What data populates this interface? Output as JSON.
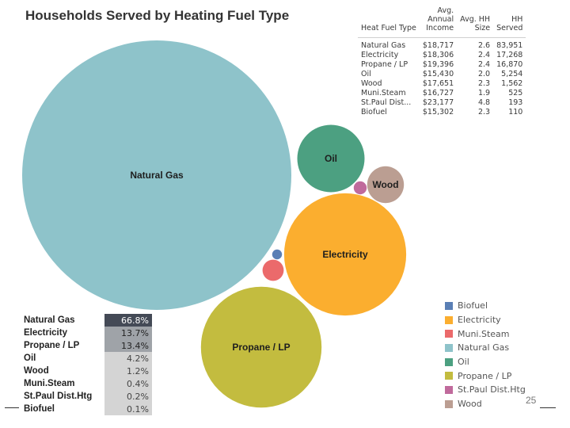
{
  "title": "Households Served by Heating Fuel Type",
  "colors": {
    "biofuel": "#5a7fb5",
    "electricity": "#fbae2f",
    "muni_steam": "#eb6a6b",
    "natural_gas": "#8ec3ca",
    "oil": "#4ca081",
    "propane_lp": "#c3bc3f",
    "st_paul_dist_htg": "#c06a9c",
    "wood": "#bb9e92",
    "share_highlight": "#444a56",
    "share_mid": "#9fa3a8",
    "share_low": "#d4d4d4"
  },
  "chart_data": {
    "type": "bubble",
    "title": "Households Served by Heating Fuel Type",
    "size_measure": "HH Served",
    "series": [
      {
        "name": "Natural Gas",
        "value": 83951,
        "color": "#8ec3ca",
        "label": "Natural Gas"
      },
      {
        "name": "Electricity",
        "value": 17268,
        "color": "#fbae2f",
        "label": "Electricity"
      },
      {
        "name": "Propane / LP",
        "value": 16870,
        "color": "#c3bc3f",
        "label": "Propane / LP"
      },
      {
        "name": "Oil",
        "value": 5254,
        "color": "#4ca081",
        "label": "Oil"
      },
      {
        "name": "Wood",
        "value": 1562,
        "color": "#bb9e92",
        "label": "Wood"
      },
      {
        "name": "Muni.Steam",
        "value": 525,
        "color": "#eb6a6b",
        "label": ""
      },
      {
        "name": "St.Paul Dist.Htg",
        "value": 193,
        "color": "#c06a9c",
        "label": ""
      },
      {
        "name": "Biofuel",
        "value": 110,
        "color": "#5a7fb5",
        "label": ""
      }
    ]
  },
  "stats_table": {
    "headers": {
      "fuel": "Heat Fuel Type",
      "income": [
        "Avg.",
        "Annual",
        "Income"
      ],
      "size": [
        "Avg. HH",
        "Size"
      ],
      "served": [
        "HH",
        "Served"
      ]
    },
    "rows": [
      {
        "fuel": "Natural Gas",
        "income": "$18,717",
        "size": "2.6",
        "served": "83,951"
      },
      {
        "fuel": "Electricity",
        "income": "$18,306",
        "size": "2.4",
        "served": "17,268"
      },
      {
        "fuel": "Propane / LP",
        "income": "$19,396",
        "size": "2.4",
        "served": "16,870"
      },
      {
        "fuel": "Oil",
        "income": "$15,430",
        "size": "2.0",
        "served": "5,254"
      },
      {
        "fuel": "Wood",
        "income": "$17,651",
        "size": "2.3",
        "served": "1,562"
      },
      {
        "fuel": "Muni.Steam",
        "income": "$16,727",
        "size": "1.9",
        "served": "525"
      },
      {
        "fuel": "St.Paul Dist...",
        "income": "$23,177",
        "size": "4.8",
        "served": "193"
      },
      {
        "fuel": "Biofuel",
        "income": "$15,302",
        "size": "2.3",
        "served": "110"
      }
    ]
  },
  "share_table": [
    {
      "name": "Natural Gas",
      "pct": "66.8%",
      "share": 66.8
    },
    {
      "name": "Electricity",
      "pct": "13.7%",
      "share": 13.7
    },
    {
      "name": "Propane / LP",
      "pct": "13.4%",
      "share": 13.4
    },
    {
      "name": "Oil",
      "pct": "4.2%",
      "share": 4.2
    },
    {
      "name": "Wood",
      "pct": "1.2%",
      "share": 1.2
    },
    {
      "name": "Muni.Steam",
      "pct": "0.4%",
      "share": 0.4
    },
    {
      "name": "St.Paul Dist.Htg",
      "pct": "0.2%",
      "share": 0.2
    },
    {
      "name": "Biofuel",
      "pct": "0.1%",
      "share": 0.1
    }
  ],
  "legend": [
    {
      "label": "Biofuel",
      "color": "#5a7fb5"
    },
    {
      "label": "Electricity",
      "color": "#fbae2f"
    },
    {
      "label": "Muni.Steam",
      "color": "#eb6a6b"
    },
    {
      "label": "Natural Gas",
      "color": "#8ec3ca"
    },
    {
      "label": "Oil",
      "color": "#4ca081"
    },
    {
      "label": "Propane / LP",
      "color": "#c3bc3f"
    },
    {
      "label": "St.Paul Dist.Htg",
      "color": "#c06a9c"
    },
    {
      "label": "Wood",
      "color": "#bb9e92"
    }
  ],
  "page_number": "25"
}
